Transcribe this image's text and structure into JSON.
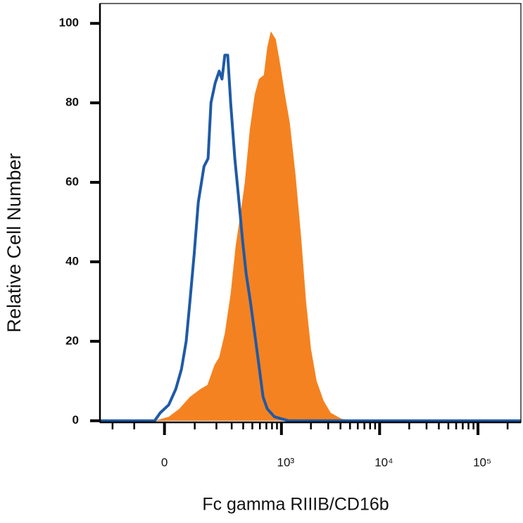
{
  "chart_data": {
    "type": "histogram-overlay",
    "xlabel": "Fc gamma RIIIB/CD16b",
    "ylabel": "Relative Cell Number",
    "xscale": "asinh",
    "xlim": [
      -280,
      273000
    ],
    "ylim": [
      -0.4,
      105
    ],
    "xticks": [
      0,
      {
        "value": 1000,
        "label": "10³"
      },
      {
        "value": 10000,
        "label": "10⁴"
      },
      {
        "value": 100000,
        "label": "10⁵"
      }
    ],
    "xminorticks": [
      -200,
      -100,
      100,
      200,
      300,
      400,
      500,
      600,
      700,
      800,
      900,
      2000,
      3000,
      4000,
      5000,
      6000,
      7000,
      8000,
      9000,
      20000,
      30000,
      40000,
      50000,
      60000,
      70000,
      80000,
      90000,
      200000
    ],
    "yticks": [
      0,
      20,
      40,
      60,
      80,
      100
    ],
    "series": [
      {
        "color": "#f58220",
        "fill": true,
        "x": [
          -280,
          -30,
          13,
          46,
          82,
          123,
          154,
          189,
          216,
          251,
          292,
          332,
          374,
          416,
          469,
          529,
          585,
          659,
          715,
          779,
          875,
          967,
          1087,
          1219,
          1394,
          1593,
          1786,
          2006,
          2288,
          2698,
          3185,
          4082,
          5226,
          273000
        ],
        "values": [
          0,
          0,
          1,
          3,
          6,
          8,
          9,
          14,
          16,
          22,
          32,
          44,
          52,
          60,
          73,
          82,
          86,
          87,
          94,
          98,
          96,
          90,
          82,
          75,
          62,
          46,
          30,
          18,
          10,
          5,
          2,
          0.5,
          0,
          0
        ]
      },
      {
        "color": "#1f5aa6",
        "fill": false,
        "x": [
          -280,
          -30,
          -13,
          13,
          35,
          53,
          69,
          82,
          98,
          114,
          138,
          157,
          171,
          193,
          216,
          233,
          251,
          271,
          292,
          325,
          361,
          395,
          430,
          477,
          529,
          585,
          647,
          715,
          846,
          1000,
          1180,
          273000
        ],
        "values": [
          0,
          0,
          2,
          4,
          8,
          13,
          20,
          30,
          42,
          55,
          64,
          66,
          80,
          85,
          88,
          86,
          92,
          92,
          80,
          66,
          55,
          45,
          37,
          30,
          22,
          14,
          6,
          3,
          1,
          0.5,
          0,
          0
        ]
      }
    ]
  }
}
